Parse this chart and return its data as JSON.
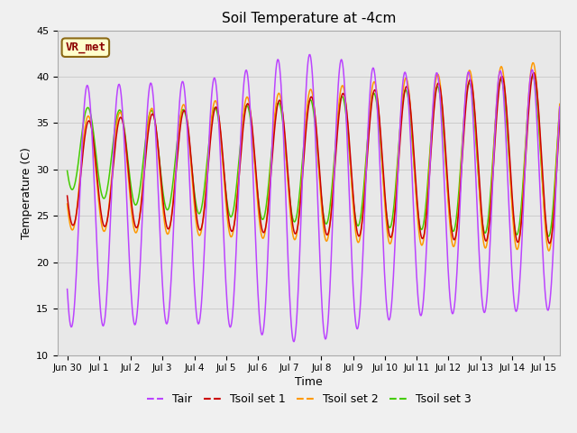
{
  "title": "Soil Temperature at -4cm",
  "xlabel": "Time",
  "ylabel": "Temperature (C)",
  "ylim": [
    10,
    45
  ],
  "background_color": "#f0f0f0",
  "plot_bg_color": "#e8e8e8",
  "annotation_text": "VR_met",
  "annotation_bg": "#ffffcc",
  "annotation_border": "#8B6914",
  "annotation_text_color": "#8B0000",
  "colors": {
    "Tair": "#bb44ff",
    "Tsoil1": "#cc0000",
    "Tsoil2": "#ff9900",
    "Tsoil3": "#44cc00"
  },
  "legend_labels": [
    "Tair",
    "Tsoil set 1",
    "Tsoil set 2",
    "Tsoil set 3"
  ],
  "xtick_labels": [
    "Jun 30",
    "Jul 1",
    "Jul 2",
    "Jul 3",
    "Jul 4",
    "Jul 5",
    "Jul 6",
    "Jul 7",
    "Jul 8",
    "Jul 9",
    "Jul 10",
    "Jul 11",
    "Jul 12",
    "Jul 13",
    "Jul 14",
    "Jul 15"
  ],
  "ytick_values": [
    10,
    15,
    20,
    25,
    30,
    35,
    40,
    45
  ],
  "grid_color": "#cccccc",
  "title_fontsize": 11
}
